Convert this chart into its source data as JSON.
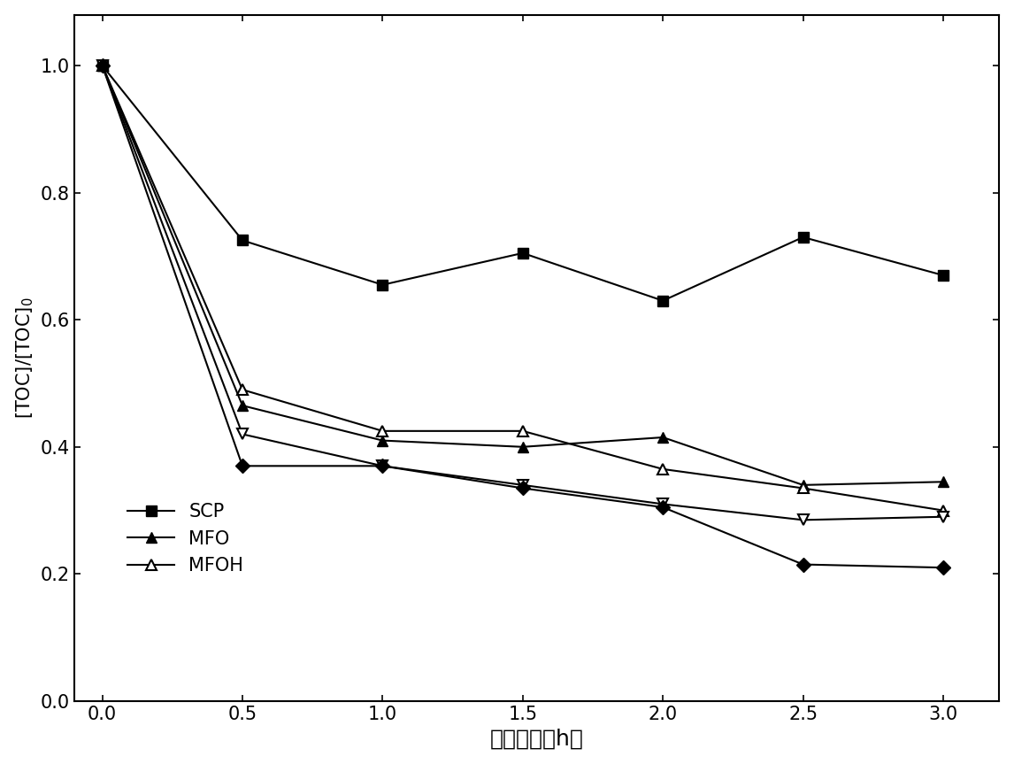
{
  "x": [
    0.0,
    0.5,
    1.0,
    1.5,
    2.0,
    2.5,
    3.0
  ],
  "SCP": [
    1.0,
    0.725,
    0.655,
    0.705,
    0.63,
    0.73,
    0.67
  ],
  "MFO": [
    1.0,
    0.465,
    0.41,
    0.4,
    0.415,
    0.34,
    0.345
  ],
  "MFOH": [
    1.0,
    0.49,
    0.425,
    0.425,
    0.365,
    0.335,
    0.3
  ],
  "series4": [
    1.0,
    0.42,
    0.37,
    0.34,
    0.31,
    0.285,
    0.29
  ],
  "series5": [
    1.0,
    0.37,
    0.37,
    0.335,
    0.305,
    0.215,
    0.21
  ],
  "xlabel": "反应时间（h）",
  "ylabel": "[TOC]/[TOC]$_0$",
  "xlim": [
    -0.1,
    3.2
  ],
  "ylim": [
    0.0,
    1.08
  ],
  "xticks": [
    0.0,
    0.5,
    1.0,
    1.5,
    2.0,
    2.5,
    3.0
  ],
  "yticks": [
    0.0,
    0.2,
    0.4,
    0.6,
    0.8,
    1.0
  ],
  "background_color": "#ffffff",
  "xlabel_fontsize": 18,
  "ylabel_fontsize": 15,
  "tick_fontsize": 15,
  "legend_fontsize": 15,
  "markersize": 9,
  "linewidth": 1.5
}
